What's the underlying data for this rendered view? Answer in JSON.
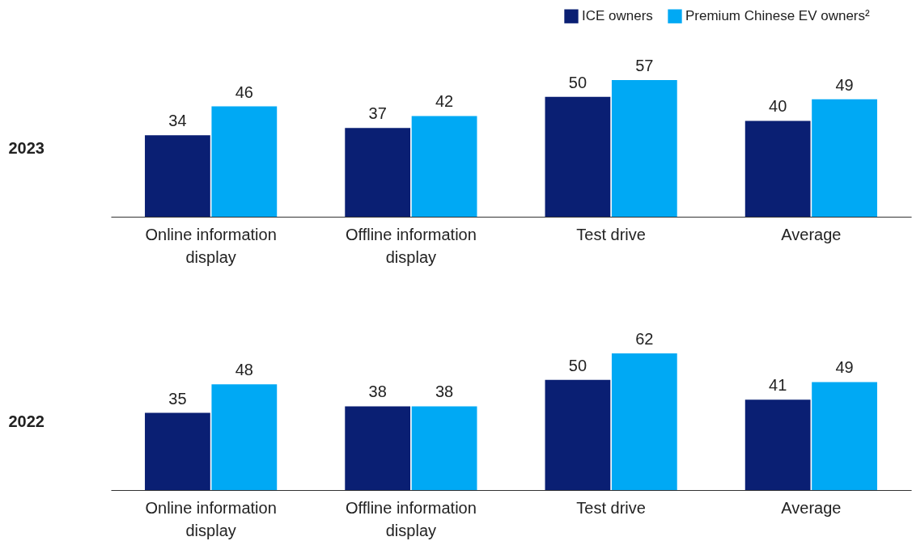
{
  "chart_data": [
    {
      "type": "bar",
      "title": "2023",
      "categories": [
        "Online information display",
        "Offline information display",
        "Test drive",
        "Average"
      ],
      "series": [
        {
          "name": "ICE owners",
          "color": "#0a1f73",
          "values": [
            34,
            37,
            50,
            40
          ]
        },
        {
          "name": "Premium Chinese EV owners²",
          "color": "#00a9f4",
          "values": [
            46,
            42,
            57,
            49
          ]
        }
      ],
      "data_labels": true,
      "legend": "top right"
    },
    {
      "type": "bar",
      "title": "2022",
      "categories": [
        "Online information display",
        "Offline information display",
        "Test drive",
        "Average"
      ],
      "series": [
        {
          "color": "#0a1f73",
          "values": [
            35,
            38,
            50,
            41
          ]
        },
        {
          "color": "#00a9f4",
          "values": [
            48,
            38,
            62,
            49
          ]
        }
      ],
      "data_labels": true
    }
  ]
}
